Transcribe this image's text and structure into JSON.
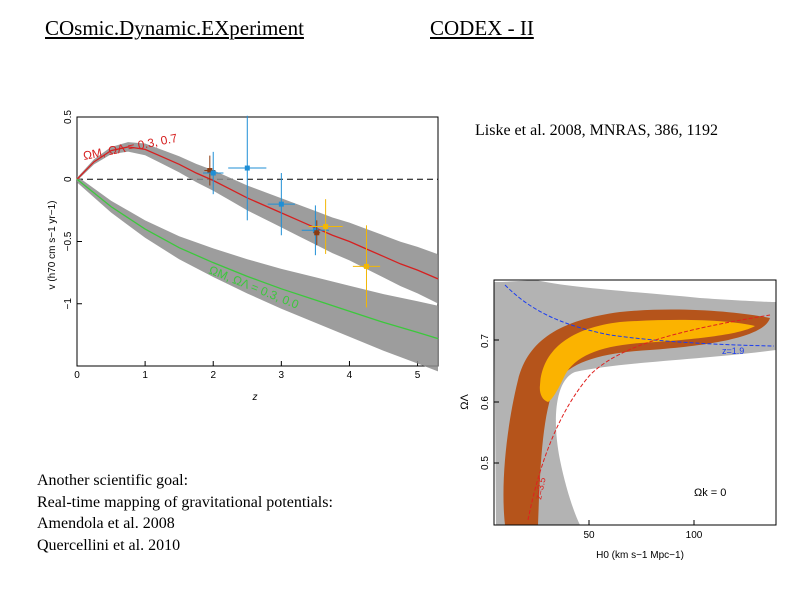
{
  "header": {
    "title_left": "COsmic.Dynamic.EXperiment",
    "title_right": "CODEX - II"
  },
  "citation": "Liske et al. 2008, MNRAS, 386, 1192",
  "goal": {
    "lines": [
      "Another scientific goal:",
      "Real-time mapping of gravitational potentials:",
      "Amendola et al. 2008",
      "Quercellini et al. 2010"
    ]
  },
  "chart_data": [
    {
      "type": "line",
      "title": "",
      "xlabel": "z",
      "ylabel": "v (h70 cm s−1 yr−1)",
      "xlim": [
        0,
        5.3
      ],
      "ylim": [
        -1.5,
        0.5
      ],
      "xticks": [
        "0",
        "1",
        "2",
        "3",
        "4",
        "5"
      ],
      "yticks": [
        "0.5",
        "0",
        "−0.5",
        "−1"
      ],
      "series": [
        {
          "name": "ΩM, ΩΛ = 0.3, 0.7",
          "color": "#d62020",
          "x": [
            0,
            0.25,
            0.5,
            0.75,
            1.0,
            1.25,
            1.5,
            1.75,
            2.0,
            2.25,
            2.5,
            2.75,
            3.0,
            3.25,
            3.5,
            3.75,
            4.0,
            4.25,
            4.5,
            4.75,
            5.0,
            5.3
          ],
          "values": [
            0,
            0.14,
            0.23,
            0.26,
            0.24,
            0.18,
            0.12,
            0.05,
            -0.01,
            -0.08,
            -0.15,
            -0.21,
            -0.27,
            -0.33,
            -0.39,
            -0.45,
            -0.5,
            -0.56,
            -0.62,
            -0.68,
            -0.73,
            -0.8
          ]
        },
        {
          "name": "ΩM, ΩΛ = 0.3, 0.0",
          "color": "#3cc83c",
          "x": [
            0,
            0.5,
            1.0,
            1.5,
            2.0,
            2.5,
            3.0,
            3.5,
            4.0,
            4.5,
            5.0,
            5.3
          ],
          "values": [
            0,
            -0.22,
            -0.4,
            -0.55,
            -0.67,
            -0.78,
            -0.88,
            -0.97,
            -1.06,
            -1.15,
            -1.23,
            -1.28
          ]
        }
      ],
      "points": [
        {
          "x": 1.95,
          "y": 0.07,
          "xerr": 0.08,
          "yerr": 0.12,
          "color": "#8b3a10"
        },
        {
          "x": 2.0,
          "y": 0.05,
          "xerr": 0.15,
          "yerr": 0.17,
          "color": "#1f8fd6"
        },
        {
          "x": 2.5,
          "y": 0.09,
          "xerr": 0.28,
          "yerr": 0.42,
          "color": "#1f8fd6"
        },
        {
          "x": 3.0,
          "y": -0.2,
          "xerr": 0.2,
          "yerr": 0.25,
          "color": "#1f8fd6"
        },
        {
          "x": 3.5,
          "y": -0.41,
          "xerr": 0.2,
          "yerr": 0.2,
          "color": "#1f8fd6"
        },
        {
          "x": 3.52,
          "y": -0.43,
          "xerr": 0.05,
          "yerr": 0.1,
          "color": "#8b3a10"
        },
        {
          "x": 3.65,
          "y": -0.38,
          "xerr": 0.25,
          "yerr": 0.22,
          "color": "#f2b705"
        },
        {
          "x": 4.25,
          "y": -0.7,
          "xerr": 0.2,
          "yerr": 0.33,
          "color": "#f2b705"
        }
      ]
    },
    {
      "type": "contour",
      "xlabel": "H0 (km s−1 Mpc−1)",
      "ylabel": "ΩΛ",
      "xticks": [
        "50",
        "100"
      ],
      "yticks": [
        "0.5",
        "0.6",
        "0.7"
      ],
      "annotations": [
        "z=1.9",
        "z=3.5",
        "Ωk = 0"
      ],
      "colors": {
        "outer": "#b3b3b3",
        "middle": "#b5541b",
        "inner": "#fbb300",
        "line_blue": "#1a3cf0",
        "line_red": "#e0201e"
      }
    }
  ]
}
